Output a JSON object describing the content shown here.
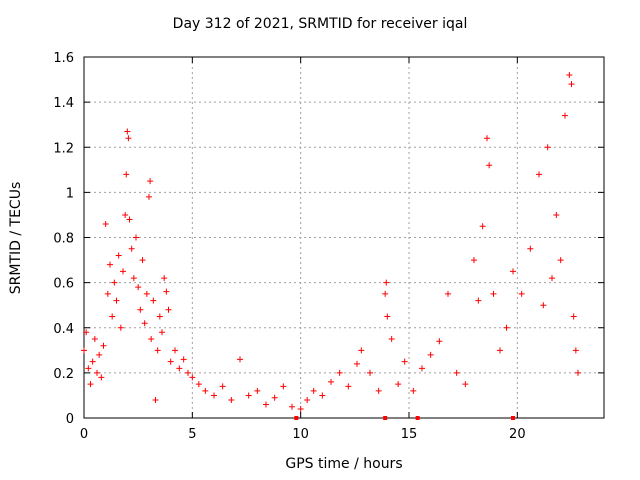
{
  "chart_data": {
    "type": "scatter",
    "title": "Day 312 of 2021, SRMTID for receiver iqal",
    "xlabel": "GPS time / hours",
    "ylabel": "SRMTID / TECUs",
    "xlim": [
      0,
      24
    ],
    "ylim": [
      0,
      1.6
    ],
    "xticks": [
      0,
      5,
      10,
      15,
      20
    ],
    "xtick_labels": [
      "0",
      "5",
      "10",
      "15",
      "20"
    ],
    "yticks": [
      0,
      0.2,
      0.4,
      0.6,
      0.8,
      1.0,
      1.2,
      1.4,
      1.6
    ],
    "ytick_labels": [
      "0",
      "0.2",
      "0.4",
      "0.6",
      "0.8",
      "1",
      "1.2",
      "1.4",
      "1.6"
    ],
    "grid": true,
    "marker": "+",
    "color": "#ff0000",
    "series": [
      {
        "name": "SRMTID",
        "points": [
          [
            0.0,
            0.3
          ],
          [
            0.1,
            0.38
          ],
          [
            0.2,
            0.22
          ],
          [
            0.3,
            0.15
          ],
          [
            0.4,
            0.25
          ],
          [
            0.5,
            0.35
          ],
          [
            0.6,
            0.2
          ],
          [
            0.7,
            0.28
          ],
          [
            0.8,
            0.18
          ],
          [
            0.9,
            0.32
          ],
          [
            1.0,
            0.86
          ],
          [
            1.1,
            0.55
          ],
          [
            1.2,
            0.68
          ],
          [
            1.3,
            0.45
          ],
          [
            1.4,
            0.6
          ],
          [
            1.5,
            0.52
          ],
          [
            1.6,
            0.72
          ],
          [
            1.7,
            0.4
          ],
          [
            1.8,
            0.65
          ],
          [
            1.9,
            0.9
          ],
          [
            1.95,
            1.08
          ],
          [
            2.0,
            1.27
          ],
          [
            2.05,
            1.24
          ],
          [
            2.1,
            0.88
          ],
          [
            2.2,
            0.75
          ],
          [
            2.3,
            0.62
          ],
          [
            2.4,
            0.8
          ],
          [
            2.5,
            0.58
          ],
          [
            2.6,
            0.48
          ],
          [
            2.7,
            0.7
          ],
          [
            2.8,
            0.42
          ],
          [
            2.9,
            0.55
          ],
          [
            3.0,
            0.98
          ],
          [
            3.05,
            1.05
          ],
          [
            3.1,
            0.35
          ],
          [
            3.2,
            0.52
          ],
          [
            3.3,
            0.08
          ],
          [
            3.4,
            0.3
          ],
          [
            3.5,
            0.45
          ],
          [
            3.6,
            0.38
          ],
          [
            3.7,
            0.62
          ],
          [
            3.8,
            0.56
          ],
          [
            3.9,
            0.48
          ],
          [
            4.0,
            0.25
          ],
          [
            4.2,
            0.3
          ],
          [
            4.4,
            0.22
          ],
          [
            4.6,
            0.26
          ],
          [
            4.8,
            0.2
          ],
          [
            5.0,
            0.18
          ],
          [
            5.3,
            0.15
          ],
          [
            5.6,
            0.12
          ],
          [
            6.0,
            0.1
          ],
          [
            6.4,
            0.14
          ],
          [
            6.8,
            0.08
          ],
          [
            7.2,
            0.26
          ],
          [
            7.6,
            0.1
          ],
          [
            8.0,
            0.12
          ],
          [
            8.4,
            0.06
          ],
          [
            8.8,
            0.09
          ],
          [
            9.2,
            0.14
          ],
          [
            9.6,
            0.05
          ],
          [
            10.0,
            0.04
          ],
          [
            10.3,
            0.08
          ],
          [
            10.6,
            0.12
          ],
          [
            11.0,
            0.1
          ],
          [
            11.4,
            0.16
          ],
          [
            11.8,
            0.2
          ],
          [
            12.2,
            0.14
          ],
          [
            12.6,
            0.24
          ],
          [
            12.8,
            0.3
          ],
          [
            13.2,
            0.2
          ],
          [
            13.6,
            0.12
          ],
          [
            13.9,
            0.55
          ],
          [
            13.95,
            0.6
          ],
          [
            14.0,
            0.45
          ],
          [
            14.2,
            0.35
          ],
          [
            14.5,
            0.15
          ],
          [
            14.8,
            0.25
          ],
          [
            15.2,
            0.12
          ],
          [
            15.6,
            0.22
          ],
          [
            16.0,
            0.28
          ],
          [
            16.4,
            0.34
          ],
          [
            16.8,
            0.55
          ],
          [
            17.2,
            0.2
          ],
          [
            17.6,
            0.15
          ],
          [
            18.0,
            0.7
          ],
          [
            18.2,
            0.52
          ],
          [
            18.4,
            0.85
          ],
          [
            18.6,
            1.24
          ],
          [
            18.7,
            1.12
          ],
          [
            18.9,
            0.55
          ],
          [
            19.2,
            0.3
          ],
          [
            19.5,
            0.4
          ],
          [
            19.8,
            0.65
          ],
          [
            20.2,
            0.55
          ],
          [
            20.6,
            0.75
          ],
          [
            21.0,
            1.08
          ],
          [
            21.2,
            0.5
          ],
          [
            21.4,
            1.2
          ],
          [
            21.6,
            0.62
          ],
          [
            21.8,
            0.9
          ],
          [
            22.0,
            0.7
          ],
          [
            22.2,
            1.34
          ],
          [
            22.4,
            1.52
          ],
          [
            22.5,
            1.48
          ],
          [
            22.6,
            0.45
          ],
          [
            22.7,
            0.3
          ],
          [
            22.8,
            0.2
          ]
        ]
      }
    ],
    "ticks_on_axis": [
      9.8,
      13.9,
      15.4,
      19.8
    ]
  }
}
